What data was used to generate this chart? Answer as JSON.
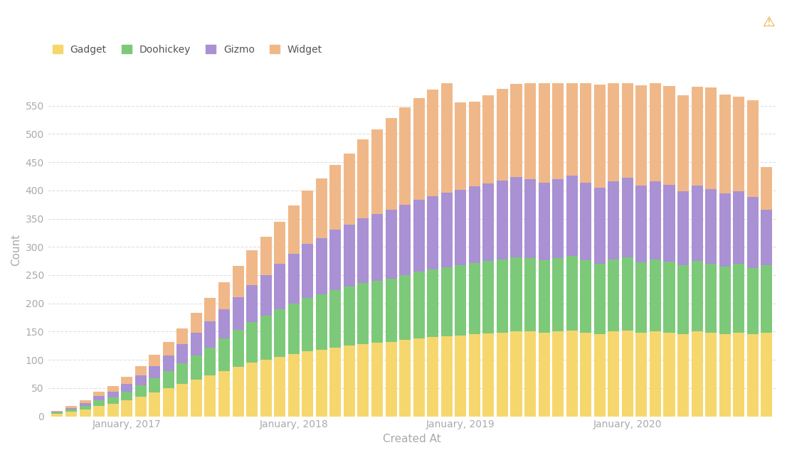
{
  "title": "",
  "xlabel": "Created At",
  "ylabel": "Count",
  "background_color": "#ffffff",
  "legend_labels": [
    "Gadget",
    "Doohickey",
    "Gizmo",
    "Widget"
  ],
  "colors": [
    "#f5d76e",
    "#7dc97a",
    "#a991d4",
    "#f0b888"
  ],
  "x_tick_labels": [
    "January, 2017",
    "January, 2018",
    "January, 2019",
    "January, 2020"
  ],
  "x_tick_positions": [
    5,
    17,
    29,
    41
  ],
  "ylim": [
    0,
    590
  ],
  "yticks": [
    0,
    50,
    100,
    150,
    200,
    250,
    300,
    350,
    400,
    450,
    500,
    550
  ],
  "gadget": [
    5,
    8,
    12,
    18,
    22,
    28,
    35,
    42,
    50,
    58,
    65,
    72,
    80,
    88,
    95,
    100,
    105,
    110,
    115,
    118,
    122,
    125,
    128,
    130,
    132,
    135,
    138,
    140,
    142,
    143,
    145,
    147,
    148,
    150,
    150,
    148,
    150,
    152,
    148,
    145,
    150,
    152,
    148,
    150,
    148,
    145,
    150,
    148,
    145,
    148,
    145,
    148
  ],
  "doohickey": [
    2,
    4,
    6,
    10,
    12,
    16,
    20,
    25,
    30,
    36,
    43,
    50,
    58,
    65,
    72,
    78,
    85,
    90,
    95,
    98,
    102,
    105,
    108,
    110,
    112,
    115,
    118,
    120,
    122,
    124,
    126,
    128,
    130,
    132,
    130,
    128,
    130,
    132,
    128,
    125,
    128,
    130,
    125,
    128,
    126,
    122,
    125,
    122,
    120,
    122,
    118,
    120
  ],
  "gizmo": [
    1,
    3,
    5,
    8,
    10,
    14,
    18,
    22,
    28,
    34,
    40,
    46,
    52,
    58,
    65,
    72,
    80,
    88,
    95,
    100,
    106,
    110,
    115,
    118,
    122,
    125,
    128,
    130,
    132,
    134,
    136,
    138,
    140,
    142,
    140,
    138,
    140,
    142,
    138,
    135,
    138,
    140,
    135,
    138,
    136,
    132,
    134,
    132,
    130,
    128,
    125,
    98
  ],
  "widget": [
    2,
    3,
    5,
    7,
    9,
    12,
    16,
    20,
    24,
    28,
    35,
    42,
    48,
    55,
    62,
    68,
    75,
    85,
    95,
    105,
    115,
    125,
    140,
    150,
    162,
    172,
    180,
    188,
    198,
    155,
    150,
    155,
    162,
    165,
    170,
    180,
    182,
    175,
    180,
    182,
    178,
    172,
    178,
    180,
    175,
    170,
    175,
    180,
    175,
    168,
    172,
    75
  ]
}
